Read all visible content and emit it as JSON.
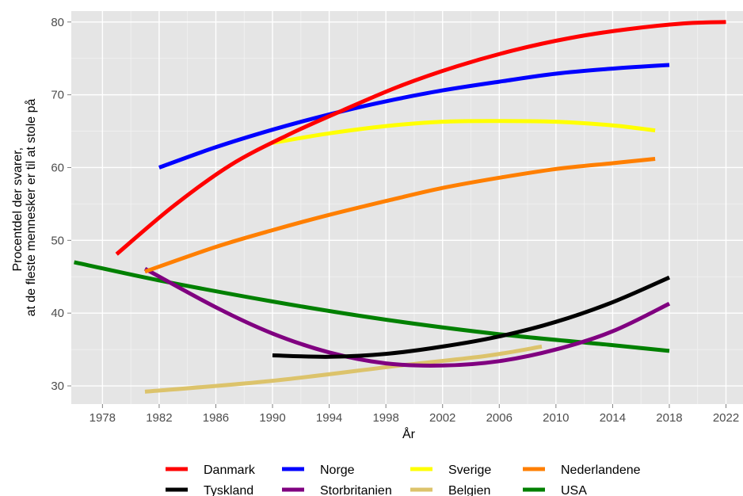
{
  "chart_data": {
    "type": "line",
    "title": "",
    "xlabel": "År",
    "ylabel": [
      "Procentdel der svarer,",
      "at de fleste mennesker er til at stole på"
    ],
    "xlim": [
      1975.8,
      2023.2
    ],
    "ylim": [
      27.5,
      81.5
    ],
    "x_ticks": [
      1978,
      1982,
      1986,
      1990,
      1994,
      1998,
      2002,
      2006,
      2010,
      2014,
      2018,
      2022
    ],
    "y_ticks": [
      30,
      40,
      50,
      60,
      70,
      80
    ],
    "grid": true,
    "background": "#e5e5e5",
    "legend_position": "bottom",
    "series": [
      {
        "name": "Danmark",
        "color": "#ff0000",
        "x": [
          1979,
          1983,
          1987,
          1991,
          1995,
          1999,
          2003,
          2007,
          2011,
          2015,
          2019,
          2022
        ],
        "y": [
          48.1,
          54.7,
          60.3,
          64.4,
          67.9,
          71.2,
          73.9,
          76.1,
          77.8,
          79.0,
          79.8,
          80.0
        ]
      },
      {
        "name": "Norge",
        "color": "#0000ff",
        "x": [
          1982,
          1986,
          1990,
          1994,
          1998,
          2002,
          2006,
          2010,
          2014,
          2018
        ],
        "y": [
          60.0,
          62.8,
          65.2,
          67.3,
          69.1,
          70.6,
          71.8,
          72.9,
          73.6,
          74.1
        ]
      },
      {
        "name": "Sverige",
        "color": "#ffff00",
        "x": [
          1990,
          1994,
          1998,
          2002,
          2006,
          2010,
          2014,
          2017
        ],
        "y": [
          63.4,
          64.7,
          65.7,
          66.3,
          66.4,
          66.3,
          65.8,
          65.1
        ]
      },
      {
        "name": "Nederlandene",
        "color": "#ff7f00",
        "x": [
          1981,
          1986,
          1990,
          1994,
          1998,
          2002,
          2006,
          2010,
          2014,
          2017
        ],
        "y": [
          45.7,
          49.1,
          51.4,
          53.5,
          55.4,
          57.2,
          58.6,
          59.8,
          60.6,
          61.2
        ]
      },
      {
        "name": "Tyskland",
        "color": "#000000",
        "x": [
          1990,
          1994,
          1998,
          2002,
          2006,
          2010,
          2014,
          2018
        ],
        "y": [
          34.2,
          34.0,
          34.4,
          35.4,
          36.8,
          38.8,
          41.5,
          44.9
        ]
      },
      {
        "name": "Storbritanien",
        "color": "#800080",
        "x": [
          1981,
          1986,
          1990,
          1994,
          1998,
          2002,
          2006,
          2010,
          2014,
          2018
        ],
        "y": [
          46.1,
          40.8,
          37.2,
          34.6,
          33.1,
          32.8,
          33.4,
          35.0,
          37.5,
          41.3
        ]
      },
      {
        "name": "Belgien",
        "color": "#dcc36b",
        "x": [
          1981,
          1990,
          1999,
          2005,
          2009
        ],
        "y": [
          29.2,
          30.7,
          32.8,
          34.1,
          35.4
        ]
      },
      {
        "name": "USA",
        "color": "#008000",
        "x": [
          1976,
          1982,
          1990,
          1998,
          2006,
          2014,
          2018
        ],
        "y": [
          47.0,
          44.5,
          41.6,
          39.1,
          37.1,
          35.6,
          34.8
        ]
      }
    ]
  }
}
